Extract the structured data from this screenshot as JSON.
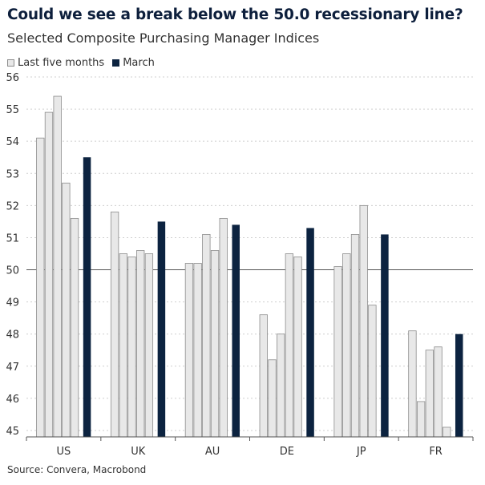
{
  "header": {
    "title": "Could we see a break below the 50.0 recessionary line?",
    "subtitle": "Selected Composite Purchasing Manager Indices"
  },
  "legend": {
    "items": [
      {
        "label": "Last five months",
        "color": "#e8e8e8"
      },
      {
        "label": "March",
        "color": "#0c2340"
      }
    ]
  },
  "footer": {
    "source": "Source: Convera, Macrobond"
  },
  "chart_data": {
    "type": "bar",
    "title": "Could we see a break below the 50.0 recessionary line?",
    "subtitle": "Selected Composite Purchasing Manager Indices",
    "categories": [
      "US",
      "UK",
      "AU",
      "DE",
      "JP",
      "FR"
    ],
    "series": [
      {
        "name": "Last five months",
        "color": "#e8e8e8",
        "values": [
          [
            54.1,
            54.9,
            55.4,
            52.7,
            51.6
          ],
          [
            51.8,
            50.5,
            50.4,
            50.6,
            50.5
          ],
          [
            50.2,
            50.2,
            51.1,
            50.6,
            51.6
          ],
          [
            48.6,
            47.2,
            48.0,
            50.5,
            50.4
          ],
          [
            50.1,
            50.5,
            51.1,
            52.0,
            48.9
          ],
          [
            48.1,
            45.9,
            47.5,
            47.6,
            45.1
          ]
        ]
      },
      {
        "name": "March",
        "color": "#0c2340",
        "values": [
          53.5,
          51.5,
          51.4,
          51.3,
          51.1,
          48.0
        ]
      }
    ],
    "ylim": [
      44.8,
      56
    ],
    "yticks": [
      45,
      46,
      47,
      48,
      49,
      50,
      51,
      52,
      53,
      54,
      55,
      56
    ],
    "reference_line": 50.0,
    "xlabel": "",
    "ylabel": "",
    "grid": true,
    "legend_position": "top-left",
    "source": "Source: Convera, Macrobond"
  }
}
